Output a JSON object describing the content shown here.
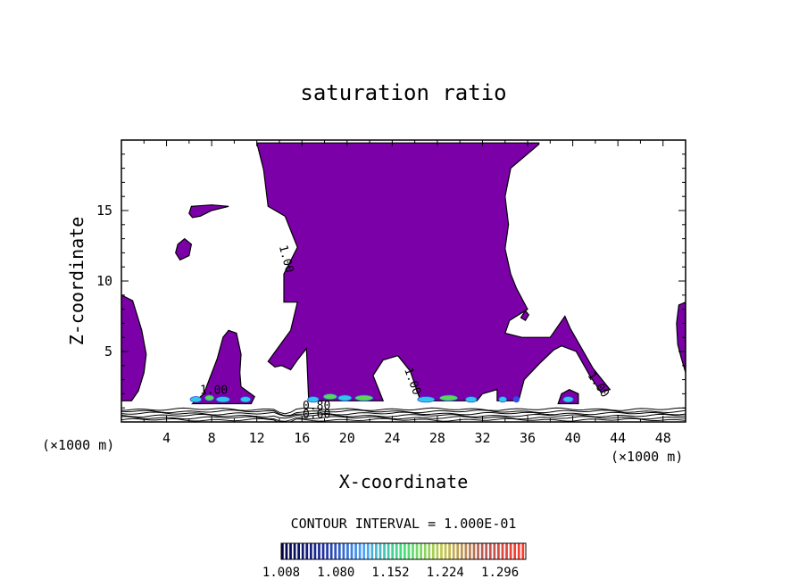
{
  "chart_data": {
    "type": "contour",
    "title": "saturation ratio",
    "xlabel": "X-coordinate",
    "ylabel": "Z-coordinate",
    "x_unit_label_left": "(×1000 m)",
    "x_unit_label_right": "(×1000 m)",
    "xlim": [
      0,
      50
    ],
    "ylim": [
      0,
      20
    ],
    "x_ticks": [
      4,
      8,
      12,
      16,
      20,
      24,
      28,
      32,
      36,
      40,
      44,
      48
    ],
    "y_ticks": [
      5,
      10,
      15
    ],
    "x_tick_labels": [
      "4",
      "8",
      "12",
      "16",
      "20",
      "24",
      "28",
      "32",
      "36",
      "40",
      "44",
      "48"
    ],
    "y_tick_labels": [
      "5",
      "10",
      "15"
    ],
    "contour_labels": [
      {
        "text": "1.00",
        "x": 14.3,
        "z": 11.5,
        "angle": 75
      },
      {
        "text": "1.00",
        "x": 8.2,
        "z": 2.0,
        "angle": 0
      },
      {
        "text": "1.00",
        "x": 25.5,
        "z": 2.8,
        "angle": 70
      },
      {
        "text": "1.00",
        "x": 42.0,
        "z": 2.5,
        "angle": 55
      },
      {
        "text": "0.80",
        "x": 17.3,
        "z": 0.9,
        "angle": 0
      },
      {
        "text": "0.60",
        "x": 17.3,
        "z": 0.3,
        "angle": 0
      }
    ],
    "contour_interval_label": "CONTOUR INTERVAL = 1.000E-01",
    "colorbar": {
      "tick_labels": [
        "1.008",
        "1.080",
        "1.152",
        "1.224",
        "1.296"
      ],
      "range": [
        1.008,
        1.33
      ],
      "colormap": [
        "#000044",
        "#1e2f9e",
        "#4aa0ff",
        "#42e07a",
        "#c6c94a",
        "#b35a5a",
        "#ff3a2a"
      ]
    },
    "colors": {
      "supersaturated_fill": "#7b00a8",
      "contour_line": "#000000",
      "cyan_pocket": "#33c6e6",
      "green_pocket": "#5bd65b",
      "blue_pocket": "#2a50e6"
    },
    "regions": [
      {
        "name": "central-tower",
        "points": [
          [
            12.0,
            19.8
          ],
          [
            12.6,
            17.9
          ],
          [
            13.0,
            15.3
          ],
          [
            14.5,
            14.6
          ],
          [
            15.6,
            12.4
          ],
          [
            14.4,
            10.5
          ],
          [
            14.4,
            8.5
          ],
          [
            15.6,
            8.5
          ],
          [
            15.0,
            6.5
          ],
          [
            13.0,
            4.3
          ],
          [
            13.6,
            3.9
          ],
          [
            14.2,
            4.0
          ],
          [
            15.0,
            3.7
          ],
          [
            15.6,
            4.4
          ],
          [
            16.4,
            5.2
          ],
          [
            16.6,
            1.5
          ],
          [
            23.2,
            1.5
          ],
          [
            22.3,
            3.3
          ],
          [
            23.2,
            4.4
          ],
          [
            24.5,
            4.7
          ],
          [
            25.6,
            3.6
          ],
          [
            26.5,
            1.5
          ],
          [
            31.5,
            1.5
          ],
          [
            32.0,
            2.0
          ],
          [
            33.3,
            2.3
          ],
          [
            33.3,
            1.5
          ],
          [
            35.2,
            1.5
          ],
          [
            35.7,
            3.0
          ],
          [
            37.0,
            4.1
          ],
          [
            38.3,
            5.1
          ],
          [
            39.0,
            5.4
          ],
          [
            40.3,
            5.0
          ],
          [
            41.5,
            3.3
          ],
          [
            42.5,
            2.1
          ],
          [
            43.3,
            2.3
          ],
          [
            41.8,
            3.8
          ],
          [
            39.8,
            6.6
          ],
          [
            39.3,
            7.5
          ],
          [
            38.0,
            6.0
          ],
          [
            36.8,
            6.0
          ],
          [
            35.5,
            6.0
          ],
          [
            34.0,
            6.3
          ],
          [
            34.4,
            7.2
          ],
          [
            36.0,
            8.0
          ],
          [
            35.0,
            9.5
          ],
          [
            34.5,
            10.5
          ],
          [
            34.0,
            12.3
          ],
          [
            34.3,
            14.0
          ],
          [
            34.0,
            16.0
          ],
          [
            34.5,
            18.0
          ],
          [
            37.0,
            19.7
          ],
          [
            37.0,
            19.8
          ]
        ]
      },
      {
        "name": "upper-left-blob",
        "points": [
          [
            6.0,
            14.8
          ],
          [
            6.2,
            15.3
          ],
          [
            8.0,
            15.4
          ],
          [
            9.5,
            15.3
          ],
          [
            8.0,
            15.0
          ],
          [
            7.0,
            14.6
          ],
          [
            6.3,
            14.5
          ]
        ]
      },
      {
        "name": "left-small-blob",
        "points": [
          [
            4.8,
            12.0
          ],
          [
            5.0,
            12.6
          ],
          [
            5.6,
            13.0
          ],
          [
            6.2,
            12.6
          ],
          [
            6.0,
            11.8
          ],
          [
            5.2,
            11.5
          ]
        ]
      },
      {
        "name": "left-edge-blob",
        "points": [
          [
            0.0,
            9.0
          ],
          [
            1.0,
            8.6
          ],
          [
            1.8,
            6.5
          ],
          [
            2.2,
            4.8
          ],
          [
            2.0,
            3.5
          ],
          [
            1.5,
            2.2
          ],
          [
            0.9,
            1.5
          ],
          [
            0.0,
            1.5
          ]
        ]
      },
      {
        "name": "column-8km",
        "points": [
          [
            9.5,
            6.5
          ],
          [
            9.0,
            6.0
          ],
          [
            8.5,
            4.5
          ],
          [
            7.3,
            2.0
          ],
          [
            6.3,
            1.3
          ],
          [
            11.5,
            1.3
          ],
          [
            11.8,
            1.8
          ],
          [
            10.6,
            2.5
          ],
          [
            10.5,
            3.5
          ],
          [
            10.6,
            4.8
          ],
          [
            10.2,
            6.3
          ]
        ]
      },
      {
        "name": "right-edge-blob",
        "points": [
          [
            50.0,
            8.5
          ],
          [
            49.4,
            8.3
          ],
          [
            49.2,
            7.0
          ],
          [
            49.3,
            5.5
          ],
          [
            49.6,
            4.6
          ],
          [
            50.0,
            3.5
          ]
        ]
      },
      {
        "name": "pocket-40km",
        "points": [
          [
            38.7,
            1.3
          ],
          [
            39.0,
            2.0
          ],
          [
            39.7,
            2.3
          ],
          [
            40.5,
            2.0
          ],
          [
            40.5,
            1.3
          ]
        ]
      },
      {
        "name": "pocket-36km-tiny",
        "points": [
          [
            35.4,
            7.4
          ],
          [
            35.8,
            7.9
          ],
          [
            36.1,
            7.6
          ],
          [
            35.8,
            7.2
          ]
        ]
      }
    ]
  }
}
